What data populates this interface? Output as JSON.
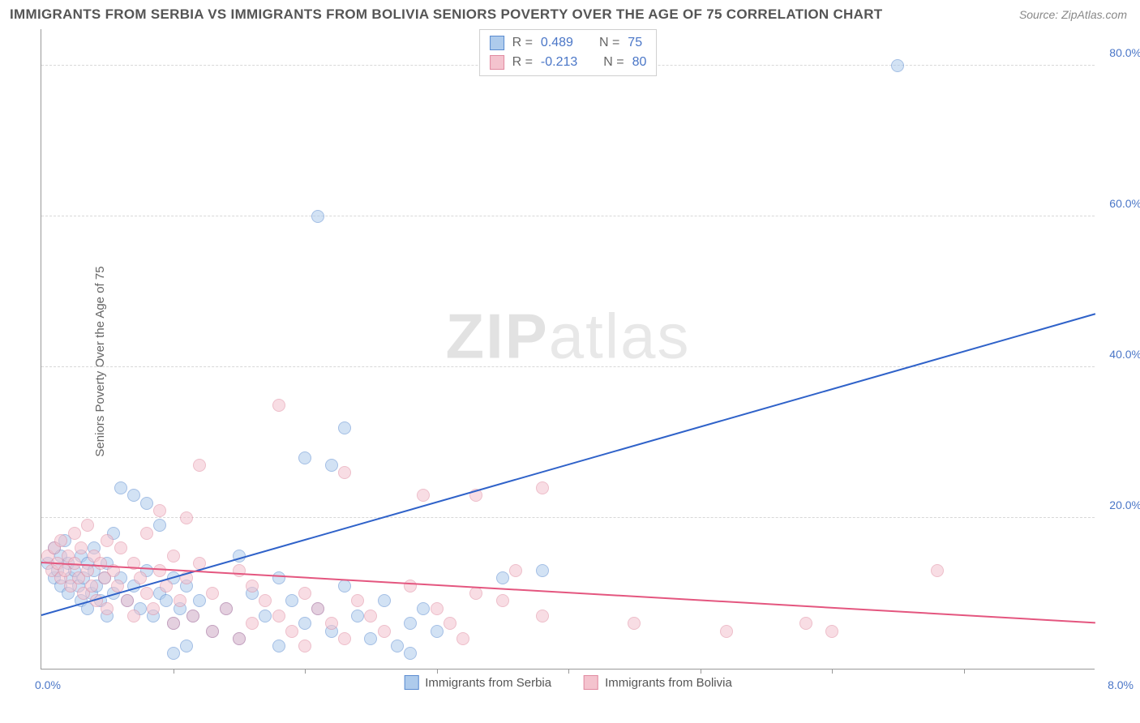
{
  "title": "IMMIGRANTS FROM SERBIA VS IMMIGRANTS FROM BOLIVIA SENIORS POVERTY OVER THE AGE OF 75 CORRELATION CHART",
  "source": "Source: ZipAtlas.com",
  "y_axis_label": "Seniors Poverty Over the Age of 75",
  "watermark_a": "ZIP",
  "watermark_b": "atlas",
  "chart": {
    "type": "scatter",
    "xlim": [
      0,
      8
    ],
    "ylim": [
      0,
      85
    ],
    "x_min_label": "0.0%",
    "x_max_label": "8.0%",
    "y_ticks": [
      20,
      40,
      60,
      80
    ],
    "y_tick_labels": [
      "20.0%",
      "40.0%",
      "60.0%",
      "80.0%"
    ],
    "x_tick_positions": [
      1,
      2,
      3,
      4,
      5,
      6,
      7
    ],
    "grid_color": "#d8d8d8",
    "background_color": "#ffffff",
    "point_radius": 8,
    "point_opacity": 0.55,
    "series": [
      {
        "name": "Immigrants from Serbia",
        "fill": "#aecbec",
        "stroke": "#5a8bd0",
        "trend_color": "#2f62c9",
        "R": "0.489",
        "N": "75",
        "trend": {
          "x1": 0.0,
          "y1": 7.0,
          "x2": 8.0,
          "y2": 47.0
        },
        "points": [
          [
            0.05,
            14
          ],
          [
            0.1,
            16
          ],
          [
            0.1,
            12
          ],
          [
            0.12,
            13
          ],
          [
            0.15,
            11
          ],
          [
            0.15,
            15
          ],
          [
            0.18,
            17
          ],
          [
            0.2,
            10
          ],
          [
            0.2,
            14
          ],
          [
            0.22,
            12
          ],
          [
            0.25,
            13
          ],
          [
            0.28,
            11
          ],
          [
            0.3,
            15
          ],
          [
            0.3,
            9
          ],
          [
            0.32,
            12
          ],
          [
            0.35,
            14
          ],
          [
            0.35,
            8
          ],
          [
            0.38,
            10
          ],
          [
            0.4,
            13
          ],
          [
            0.4,
            16
          ],
          [
            0.42,
            11
          ],
          [
            0.45,
            9
          ],
          [
            0.48,
            12
          ],
          [
            0.5,
            14
          ],
          [
            0.5,
            7
          ],
          [
            0.55,
            10
          ],
          [
            0.55,
            18
          ],
          [
            0.6,
            12
          ],
          [
            0.6,
            24
          ],
          [
            0.65,
            9
          ],
          [
            0.7,
            11
          ],
          [
            0.7,
            23
          ],
          [
            0.75,
            8
          ],
          [
            0.8,
            13
          ],
          [
            0.8,
            22
          ],
          [
            0.85,
            7
          ],
          [
            0.9,
            10
          ],
          [
            0.9,
            19
          ],
          [
            0.95,
            9
          ],
          [
            1.0,
            12
          ],
          [
            1.0,
            6
          ],
          [
            1.0,
            2
          ],
          [
            1.05,
            8
          ],
          [
            1.1,
            11
          ],
          [
            1.1,
            3
          ],
          [
            1.15,
            7
          ],
          [
            1.2,
            9
          ],
          [
            1.3,
            5
          ],
          [
            1.4,
            8
          ],
          [
            1.5,
            15
          ],
          [
            1.5,
            4
          ],
          [
            1.6,
            10
          ],
          [
            1.7,
            7
          ],
          [
            1.8,
            12
          ],
          [
            1.8,
            3
          ],
          [
            1.9,
            9
          ],
          [
            2.0,
            6
          ],
          [
            2.0,
            28
          ],
          [
            2.1,
            8
          ],
          [
            2.1,
            60
          ],
          [
            2.2,
            5
          ],
          [
            2.2,
            27
          ],
          [
            2.3,
            11
          ],
          [
            2.3,
            32
          ],
          [
            2.4,
            7
          ],
          [
            2.5,
            4
          ],
          [
            2.6,
            9
          ],
          [
            2.7,
            3
          ],
          [
            2.8,
            6
          ],
          [
            2.8,
            2
          ],
          [
            2.9,
            8
          ],
          [
            3.0,
            5
          ],
          [
            3.5,
            12
          ],
          [
            3.8,
            13
          ],
          [
            6.5,
            80
          ]
        ]
      },
      {
        "name": "Immigrants from Bolivia",
        "fill": "#f4c3ce",
        "stroke": "#e08aa0",
        "trend_color": "#e4567f",
        "R": "-0.213",
        "N": "80",
        "trend": {
          "x1": 0.0,
          "y1": 14.0,
          "x2": 8.0,
          "y2": 6.0
        },
        "points": [
          [
            0.05,
            15
          ],
          [
            0.08,
            13
          ],
          [
            0.1,
            16
          ],
          [
            0.12,
            14
          ],
          [
            0.15,
            12
          ],
          [
            0.15,
            17
          ],
          [
            0.18,
            13
          ],
          [
            0.2,
            15
          ],
          [
            0.22,
            11
          ],
          [
            0.25,
            14
          ],
          [
            0.25,
            18
          ],
          [
            0.28,
            12
          ],
          [
            0.3,
            16
          ],
          [
            0.32,
            10
          ],
          [
            0.35,
            13
          ],
          [
            0.35,
            19
          ],
          [
            0.38,
            11
          ],
          [
            0.4,
            15
          ],
          [
            0.42,
            9
          ],
          [
            0.45,
            14
          ],
          [
            0.48,
            12
          ],
          [
            0.5,
            17
          ],
          [
            0.5,
            8
          ],
          [
            0.55,
            13
          ],
          [
            0.58,
            11
          ],
          [
            0.6,
            16
          ],
          [
            0.65,
            9
          ],
          [
            0.7,
            14
          ],
          [
            0.7,
            7
          ],
          [
            0.75,
            12
          ],
          [
            0.8,
            10
          ],
          [
            0.8,
            18
          ],
          [
            0.85,
            8
          ],
          [
            0.9,
            13
          ],
          [
            0.9,
            21
          ],
          [
            0.95,
            11
          ],
          [
            1.0,
            6
          ],
          [
            1.0,
            15
          ],
          [
            1.05,
            9
          ],
          [
            1.1,
            12
          ],
          [
            1.1,
            20
          ],
          [
            1.15,
            7
          ],
          [
            1.2,
            14
          ],
          [
            1.2,
            27
          ],
          [
            1.3,
            10
          ],
          [
            1.3,
            5
          ],
          [
            1.4,
            8
          ],
          [
            1.5,
            13
          ],
          [
            1.5,
            4
          ],
          [
            1.6,
            11
          ],
          [
            1.6,
            6
          ],
          [
            1.7,
            9
          ],
          [
            1.8,
            7
          ],
          [
            1.8,
            35
          ],
          [
            1.9,
            5
          ],
          [
            2.0,
            10
          ],
          [
            2.0,
            3
          ],
          [
            2.1,
            8
          ],
          [
            2.2,
            6
          ],
          [
            2.3,
            4
          ],
          [
            2.3,
            26
          ],
          [
            2.4,
            9
          ],
          [
            2.5,
            7
          ],
          [
            2.6,
            5
          ],
          [
            2.8,
            11
          ],
          [
            2.9,
            23
          ],
          [
            3.0,
            8
          ],
          [
            3.1,
            6
          ],
          [
            3.2,
            4
          ],
          [
            3.3,
            10
          ],
          [
            3.3,
            23
          ],
          [
            3.5,
            9
          ],
          [
            3.6,
            13
          ],
          [
            3.8,
            7
          ],
          [
            3.8,
            24
          ],
          [
            4.5,
            6
          ],
          [
            5.2,
            5
          ],
          [
            5.8,
            6
          ],
          [
            6.0,
            5
          ],
          [
            6.8,
            13
          ]
        ]
      }
    ],
    "stats_box": {
      "rows": [
        {
          "swatch_fill": "#aecbec",
          "swatch_stroke": "#5a8bd0",
          "R_label": "R =",
          "R_val": "0.489",
          "N_label": "N =",
          "N_val": "75"
        },
        {
          "swatch_fill": "#f4c3ce",
          "swatch_stroke": "#e08aa0",
          "R_label": "R =",
          "R_val": "-0.213",
          "N_label": "N =",
          "N_val": "80"
        }
      ]
    },
    "bottom_legend": [
      {
        "swatch_fill": "#aecbec",
        "swatch_stroke": "#5a8bd0",
        "label": "Immigrants from Serbia"
      },
      {
        "swatch_fill": "#f4c3ce",
        "swatch_stroke": "#e08aa0",
        "label": "Immigrants from Bolivia"
      }
    ]
  }
}
